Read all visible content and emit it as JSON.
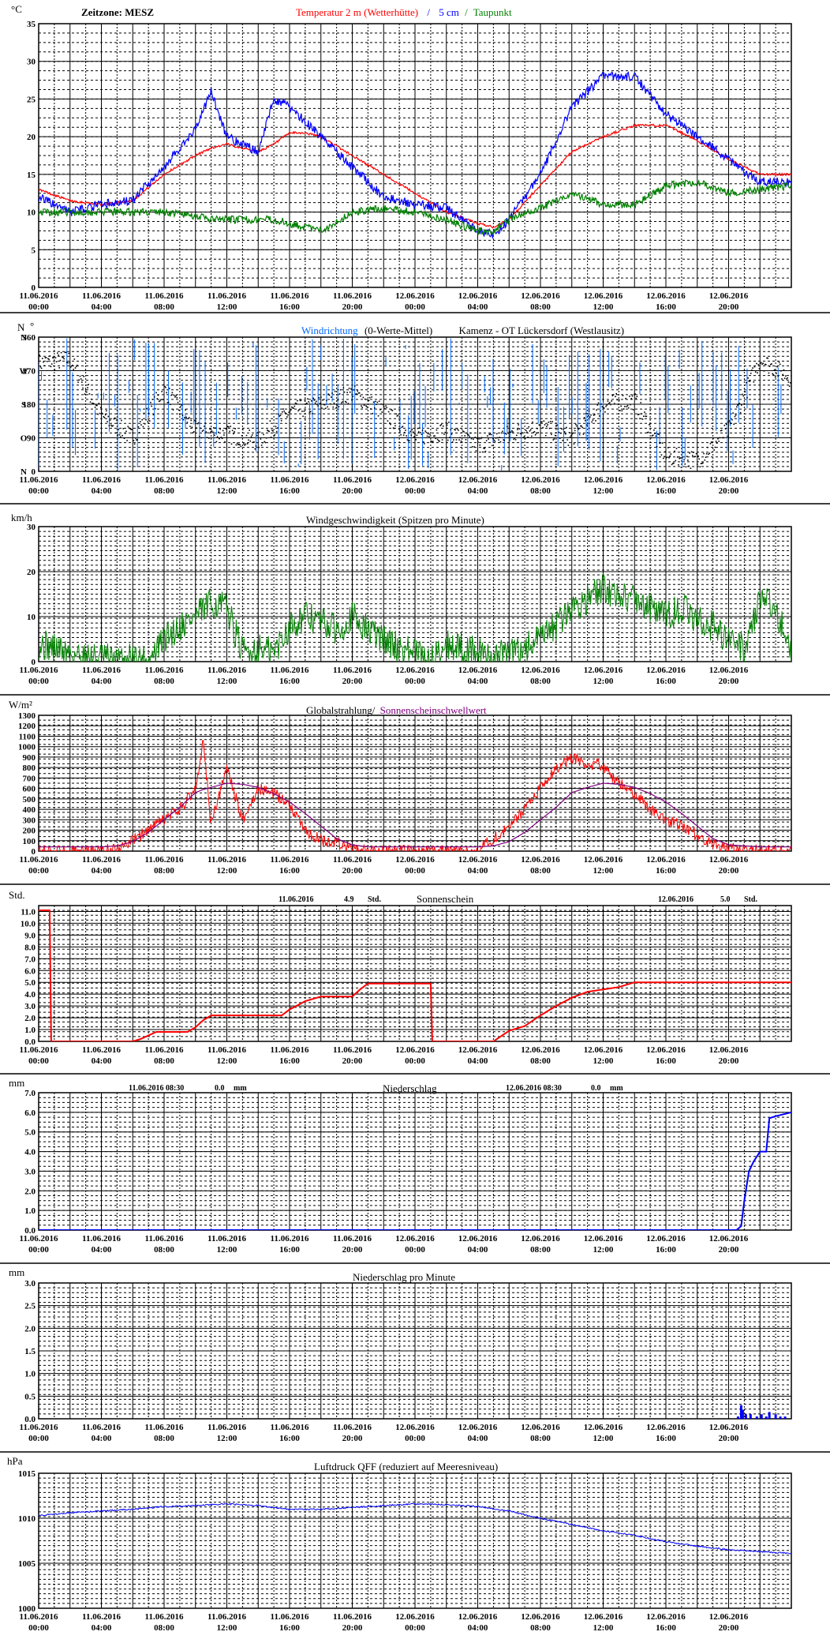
{
  "page": {
    "timezone_label": "Zeitzone: MESZ"
  },
  "x_axis": {
    "label_dates": [
      "11.06.2016",
      "11.06.2016",
      "11.06.2016",
      "11.06.2016",
      "11.06.2016",
      "11.06.2016",
      "12.06.2016",
      "12.06.2016",
      "12.06.2016",
      "12.06.2016",
      "12.06.2016",
      "12.06.2016"
    ],
    "label_times": [
      "00:00",
      "04:00",
      "08:00",
      "12:00",
      "16:00",
      "20:00",
      "00:00",
      "04:00",
      "08:00",
      "12:00",
      "16:00",
      "20:00"
    ],
    "range_hours": [
      0,
      48
    ]
  },
  "colors": {
    "temp_2m": "#ff0000",
    "temp_5cm": "#0000ff",
    "dewpoint": "#008000",
    "wind_dir_mean": "#000000",
    "wind_dir_raw": "#0066ff",
    "wind_speed": "#008000",
    "radiation": "#ff0000",
    "sunshine_threshold": "#800080",
    "sunshine": "#ff0000",
    "precip": "#0000ff",
    "pressure": "#0000ff"
  },
  "charts": [
    {
      "id": "temperature",
      "unit": "°C",
      "title_parts": [
        "Temperatur 2 m (Wetterhütte)",
        "/",
        "5 cm",
        "/",
        "Taupunkt"
      ],
      "ylim": [
        0,
        35
      ],
      "yticks": [
        "0",
        "5",
        "10",
        "15",
        "20",
        "25",
        "30",
        "35"
      ]
    },
    {
      "id": "wind_direction",
      "unit_left": "N",
      "unit_right": "°",
      "title_parts": [
        "Windrichtung",
        "(0-Werte-Mittel)",
        "Kamenz - OT Lückersdorf (Westlausitz)"
      ],
      "ylim": [
        0,
        360
      ],
      "yticks": [
        "0",
        "90",
        "180",
        "270",
        "360"
      ],
      "compass_labels": [
        "N",
        "O",
        "S",
        "W",
        "N"
      ]
    },
    {
      "id": "wind_speed",
      "unit": "km/h",
      "title": "Windgeschwindigkeit (Spitzen pro Minute)",
      "ylim": [
        0,
        30
      ],
      "yticks": [
        "0",
        "10",
        "20",
        "30"
      ]
    },
    {
      "id": "radiation",
      "unit": "W/m²",
      "title_parts": [
        "Globalstrahlung/",
        "Sonnenscheinschwellwert"
      ],
      "ylim": [
        0,
        1300
      ],
      "yticks": [
        "0",
        "100",
        "200",
        "300",
        "400",
        "500",
        "600",
        "700",
        "800",
        "900",
        "1000",
        "1100",
        "1200",
        "1300"
      ]
    },
    {
      "id": "sunshine",
      "unit": "Std.",
      "title": "Sonnenschein",
      "ylim": [
        0,
        11.5
      ],
      "yticks": [
        "0.0",
        "1.0",
        "2.0",
        "3.0",
        "4.0",
        "5.0",
        "6.0",
        "7.0",
        "8.0",
        "9.0",
        "10.0",
        "11.0"
      ],
      "summary_1": [
        "11.06.2016",
        "4.9",
        "Std."
      ],
      "summary_2": [
        "12.06.2016",
        "5.0",
        "Std."
      ]
    },
    {
      "id": "precipitation",
      "unit": "mm",
      "title": "Niederschlag",
      "ylim": [
        0,
        7
      ],
      "yticks": [
        "0.0",
        "1.0",
        "2.0",
        "3.0",
        "4.0",
        "5.0",
        "6.0",
        "7.0"
      ],
      "summary_1": [
        "11.06.2016 08:30",
        "0.0",
        "mm"
      ],
      "summary_2": [
        "12.06.2016 08:30",
        "0.0",
        "mm"
      ]
    },
    {
      "id": "precip_minute",
      "unit": "mm",
      "title": "Niederschlag pro Minute",
      "ylim": [
        0,
        3
      ],
      "yticks": [
        "0.0",
        "0.5",
        "1.0",
        "1.5",
        "2.0",
        "2.5",
        "3.0"
      ]
    },
    {
      "id": "pressure",
      "unit": "hPa",
      "title": "Luftdruck QFF (reduziert auf Meeresniveau)",
      "ylim": [
        1000,
        1015
      ],
      "yticks": [
        "1000",
        "1005",
        "1010",
        "1015"
      ]
    }
  ],
  "chart_data": [
    {
      "type": "line",
      "title": "Temperatur 2 m (Wetterhütte) / 5 cm / Taupunkt",
      "ylabel": "°C",
      "ylim": [
        0,
        35
      ],
      "x_hours": [
        0,
        2,
        4,
        6,
        8,
        10,
        11,
        12,
        13,
        14,
        15,
        16,
        17,
        18,
        20,
        22,
        24,
        26,
        28,
        29,
        30,
        32,
        34,
        36,
        38,
        40,
        42,
        44,
        46,
        48
      ],
      "series": [
        {
          "name": "Temperatur 2 m (Wetterhütte)",
          "values": [
            13,
            11.5,
            11,
            11.5,
            15,
            17.5,
            18.5,
            19,
            18.5,
            18,
            19,
            20.5,
            20.5,
            20,
            17.5,
            15,
            12.5,
            10,
            8.5,
            8,
            9,
            13.5,
            18,
            20,
            21.5,
            21.5,
            19.5,
            17,
            15,
            15
          ]
        },
        {
          "name": "5 cm",
          "values": [
            12,
            10,
            11,
            11.5,
            16,
            21,
            26,
            20,
            19,
            18,
            25,
            24,
            22,
            20,
            16,
            12,
            11,
            10.5,
            7.5,
            7,
            9,
            15,
            24,
            28,
            28,
            23,
            20,
            17,
            14,
            14
          ]
        },
        {
          "name": "Taupunkt",
          "values": [
            10,
            10,
            10,
            10,
            10,
            9.5,
            9,
            9,
            9,
            9,
            9,
            8.5,
            8,
            7.5,
            10,
            10.5,
            10,
            9,
            7.5,
            7.5,
            9,
            10.5,
            12.5,
            11,
            11,
            13.5,
            14,
            12.5,
            13,
            13.5
          ]
        }
      ]
    },
    {
      "type": "scatter",
      "title": "Windrichtung (0-Werte-Mittel)",
      "ylim": [
        0,
        360
      ],
      "x_hours": [
        0,
        2,
        4,
        6,
        8,
        10,
        12,
        14,
        16,
        18,
        20,
        22,
        24,
        26,
        28,
        30,
        32,
        34,
        36,
        38,
        40,
        42,
        44,
        46,
        48
      ],
      "values": [
        290,
        300,
        150,
        90,
        220,
        110,
        100,
        80,
        160,
        180,
        210,
        160,
        90,
        110,
        70,
        100,
        120,
        90,
        180,
        190,
        40,
        30,
        110,
        300,
        250
      ]
    },
    {
      "type": "line",
      "title": "Windgeschwindigkeit (Spitzen pro Minute)",
      "ylabel": "km/h",
      "ylim": [
        0,
        30
      ],
      "x_hours": [
        0,
        1,
        2,
        3,
        4,
        5,
        6,
        7,
        8,
        9,
        10,
        11,
        12,
        13,
        14,
        15,
        16,
        17,
        18,
        19,
        20,
        21,
        22,
        23,
        24,
        25,
        26,
        27,
        28,
        29,
        30,
        31,
        32,
        33,
        34,
        35,
        36,
        37,
        38,
        39,
        40,
        41,
        42,
        43,
        44,
        45,
        46,
        47,
        48
      ],
      "values": [
        4,
        3,
        2,
        1,
        1,
        0,
        1,
        0,
        5,
        8,
        10,
        13,
        12,
        2,
        3,
        2,
        8,
        10,
        9,
        7,
        10,
        7,
        5,
        3,
        2,
        0,
        4,
        3,
        2,
        1,
        2,
        3,
        5,
        8,
        12,
        14,
        16,
        15,
        14,
        12,
        10,
        12,
        9,
        8,
        5,
        3,
        14,
        12,
        2
      ]
    },
    {
      "type": "line",
      "title": "Globalstrahlung/ Sonnenscheinschwellwert",
      "ylabel": "W/m²",
      "ylim": [
        0,
        1300
      ],
      "x_hours": [
        0,
        4,
        5,
        6,
        7,
        8,
        9,
        10,
        10.5,
        11,
        12,
        13,
        14,
        15,
        16,
        17,
        18,
        19,
        20,
        21,
        24,
        28,
        29,
        30,
        31,
        32,
        33,
        34,
        35,
        36,
        37,
        38,
        39,
        40,
        41,
        42,
        43,
        44,
        46,
        48
      ],
      "series": [
        {
          "name": "Globalstrahlung",
          "values": [
            0,
            0,
            30,
            100,
            200,
            300,
            400,
            600,
            1050,
            250,
            800,
            300,
            600,
            550,
            450,
            200,
            100,
            80,
            20,
            0,
            0,
            0,
            120,
            250,
            400,
            600,
            800,
            900,
            850,
            800,
            650,
            550,
            400,
            300,
            250,
            150,
            60,
            20,
            0,
            0
          ]
        },
        {
          "name": "Sonnenscheinschwellwert",
          "values": [
            40,
            40,
            50,
            90,
            180,
            300,
            420,
            560,
            590,
            610,
            650,
            640,
            610,
            550,
            470,
            360,
            240,
            120,
            60,
            40,
            40,
            40,
            50,
            90,
            180,
            300,
            420,
            560,
            610,
            650,
            640,
            610,
            550,
            470,
            360,
            240,
            120,
            60,
            40,
            40
          ]
        }
      ]
    },
    {
      "type": "line",
      "title": "Sonnenschein",
      "ylabel": "Std.",
      "ylim": [
        0,
        11.5
      ],
      "x_hours": [
        0,
        0.7,
        0.8,
        6,
        6.5,
        7.5,
        9.5,
        10,
        10.5,
        11,
        15.5,
        16,
        17,
        18,
        20,
        20.5,
        21,
        25,
        25.1,
        29,
        30,
        31,
        32,
        33,
        34,
        35,
        36,
        37,
        38,
        48
      ],
      "values": [
        11.1,
        11.1,
        0,
        0,
        0.2,
        0.8,
        0.8,
        1.2,
        1.8,
        2.2,
        2.2,
        2.7,
        3.4,
        3.8,
        3.8,
        4.4,
        4.9,
        4.9,
        0,
        0,
        0.9,
        1.3,
        2.2,
        3.0,
        3.7,
        4.2,
        4.4,
        4.6,
        5.0,
        5.0
      ]
    },
    {
      "type": "line",
      "title": "Niederschlag",
      "ylabel": "mm",
      "ylim": [
        0,
        7
      ],
      "x_hours": [
        0,
        44.5,
        44.8,
        45,
        45.3,
        45.6,
        46,
        46.2,
        46.4,
        46.6,
        47,
        47.5,
        48
      ],
      "values": [
        0,
        0,
        0.2,
        1.5,
        3.0,
        3.5,
        4.0,
        4.0,
        4.0,
        5.7,
        5.8,
        5.9,
        6.0
      ]
    },
    {
      "type": "bar",
      "title": "Niederschlag pro Minute",
      "ylabel": "mm",
      "ylim": [
        0,
        3
      ],
      "x_hours": [
        44.6,
        44.8,
        44.9,
        45.1,
        45.4,
        45.8,
        46.1,
        46.4,
        46.6,
        47.0,
        47.3,
        47.6
      ],
      "values": [
        0.05,
        0.3,
        0.2,
        0.1,
        0.1,
        0.05,
        0.1,
        0.05,
        0.15,
        0.1,
        0.05,
        0.05
      ]
    },
    {
      "type": "line",
      "title": "Luftdruck QFF (reduziert auf Meeresniveau)",
      "ylabel": "hPa",
      "ylim": [
        1000,
        1015
      ],
      "x_hours": [
        0,
        2,
        4,
        6,
        8,
        10,
        12,
        14,
        16,
        18,
        20,
        22,
        24,
        26,
        28,
        30,
        32,
        34,
        36,
        38,
        40,
        42,
        44,
        46,
        48
      ],
      "values": [
        1010.3,
        1010.6,
        1010.8,
        1011,
        1011.3,
        1011.4,
        1011.6,
        1011.4,
        1011,
        1011,
        1011.2,
        1011.4,
        1011.6,
        1011.5,
        1011.3,
        1010.8,
        1010,
        1009.3,
        1008.6,
        1008.1,
        1007.4,
        1006.9,
        1006.5,
        1006.3,
        1006.1
      ]
    }
  ]
}
